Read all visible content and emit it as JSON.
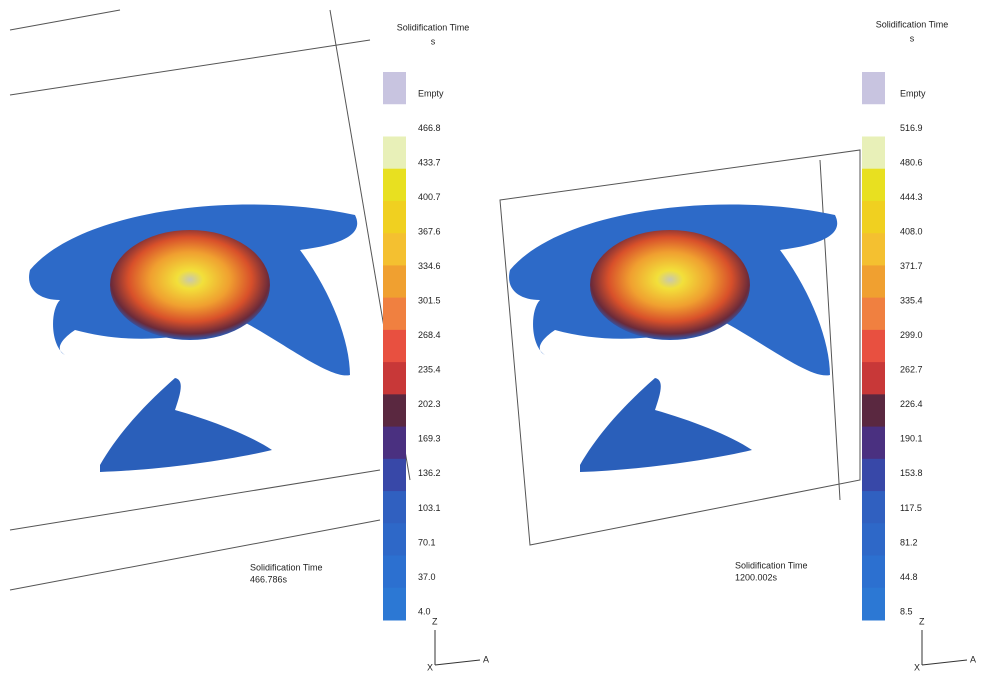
{
  "panels": [
    {
      "legend": {
        "title": "Solidification Time",
        "unit": "s",
        "labels": [
          "Empty",
          "466.8",
          "433.7",
          "400.7",
          "367.6",
          "334.6",
          "301.5",
          "268.4",
          "235.4",
          "202.3",
          "169.3",
          "136.2",
          "103.1",
          "70.1",
          "37.0",
          "4.0"
        ]
      },
      "caption": {
        "title": "Solidification Time",
        "time": "466.786s"
      },
      "axes": {
        "z": "Z",
        "x": "X",
        "a": "A"
      }
    },
    {
      "legend": {
        "title": "Solidification Time",
        "unit": "s",
        "labels": [
          "Empty",
          "516.9",
          "480.6",
          "444.3",
          "408.0",
          "371.7",
          "335.4",
          "299.0",
          "262.7",
          "226.4",
          "190.1",
          "153.8",
          "117.5",
          "81.2",
          "44.8",
          "8.5"
        ]
      },
      "caption": {
        "title": "Solidification Time",
        "time": "1200.002s"
      },
      "axes": {
        "z": "Z",
        "x": "X",
        "a": "A"
      }
    }
  ]
}
